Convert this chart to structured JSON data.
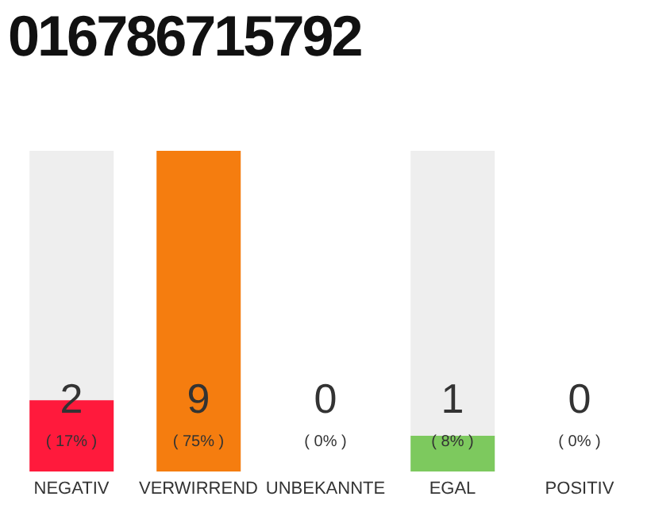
{
  "chart_data": {
    "type": "bar",
    "title": "016786715792",
    "categories": [
      "NEGATIV",
      "VERWIRREND",
      "UNBEKANNTE",
      "EGAL",
      "POSITIV"
    ],
    "values": [
      2,
      9,
      0,
      1,
      0
    ],
    "colors": [
      "#ff1a3c",
      "#f57d0f",
      "#aaaaaa",
      "#7dc95e",
      "#aaaaaa"
    ],
    "value_labels": [
      "2",
      "9",
      "0",
      "1",
      "0"
    ],
    "annotations": [
      "( 17% )",
      "( 75% )",
      "( 0% )",
      "( 8% )",
      "( 0% )"
    ]
  }
}
